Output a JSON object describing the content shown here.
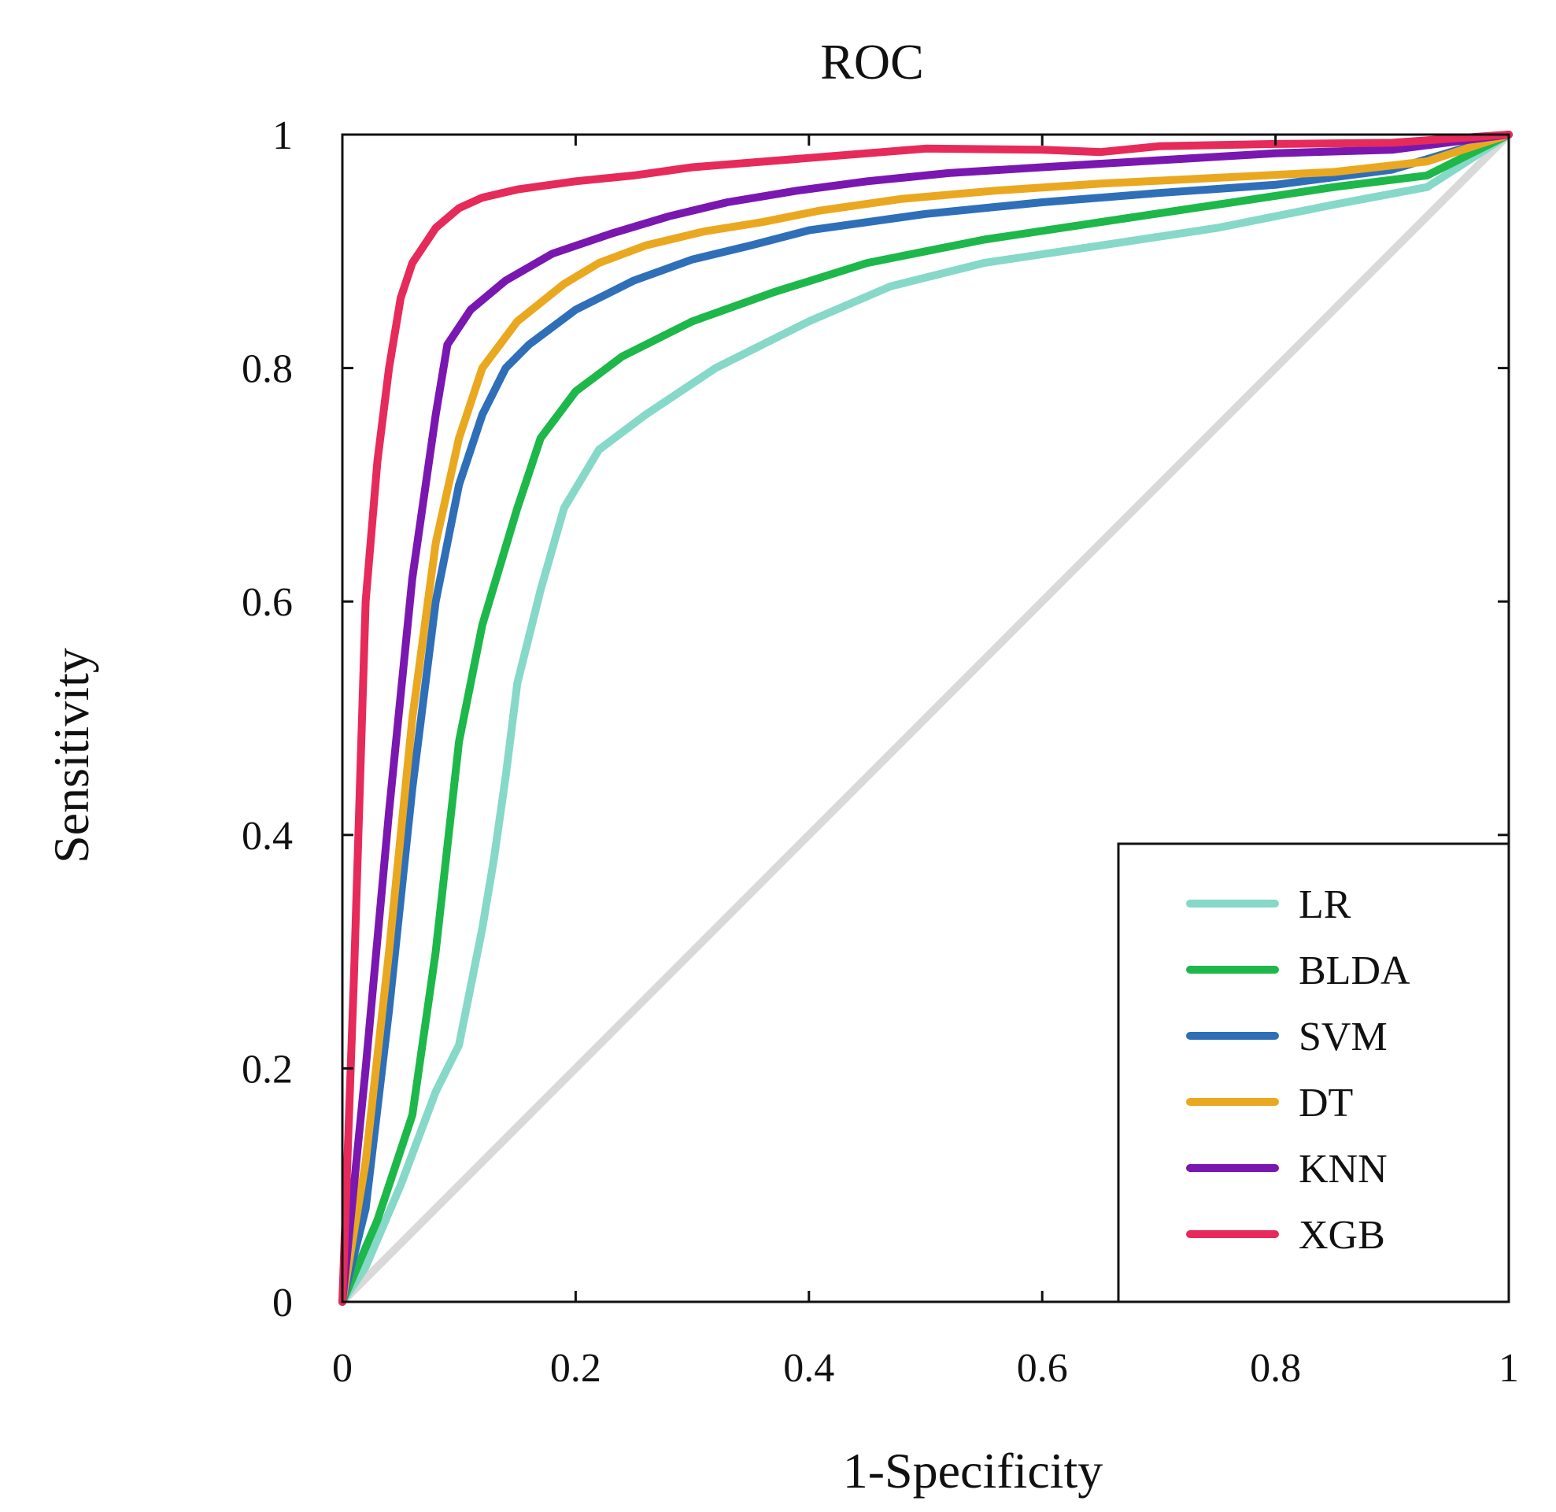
{
  "chart_data": {
    "type": "line",
    "title": "ROC",
    "xlabel": "1-Specificity",
    "ylabel": "Sensitivity",
    "xlim": [
      0,
      1
    ],
    "ylim": [
      0,
      1
    ],
    "xticks": [
      0,
      0.2,
      0.4,
      0.6,
      0.8,
      1
    ],
    "yticks": [
      0,
      0.2,
      0.4,
      0.6,
      0.8,
      1
    ],
    "xtick_labels": [
      "0",
      "0.2",
      "0.4",
      "0.6",
      "0.8",
      "1"
    ],
    "ytick_labels": [
      "0",
      "0.2",
      "0.4",
      "0.6",
      "0.8",
      "1"
    ],
    "grid": false,
    "legend_position": "bottom-right",
    "reference_line": {
      "x": [
        0,
        1
      ],
      "y": [
        0,
        1
      ],
      "color": "#d9d9d9"
    },
    "series": [
      {
        "name": "LR",
        "color": "#86d8c8",
        "x": [
          0,
          0.02,
          0.05,
          0.08,
          0.1,
          0.12,
          0.13,
          0.14,
          0.15,
          0.17,
          0.19,
          0.22,
          0.26,
          0.32,
          0.4,
          0.47,
          0.55,
          0.65,
          0.75,
          0.85,
          0.93,
          1
        ],
        "y": [
          0,
          0.03,
          0.1,
          0.18,
          0.22,
          0.32,
          0.38,
          0.45,
          0.53,
          0.61,
          0.68,
          0.73,
          0.76,
          0.8,
          0.84,
          0.87,
          0.89,
          0.905,
          0.92,
          0.94,
          0.955,
          1
        ]
      },
      {
        "name": "BLDA",
        "color": "#1eb74a",
        "x": [
          0,
          0.03,
          0.06,
          0.08,
          0.1,
          0.12,
          0.15,
          0.17,
          0.2,
          0.24,
          0.3,
          0.37,
          0.45,
          0.55,
          0.65,
          0.75,
          0.85,
          0.93,
          1
        ],
        "y": [
          0,
          0.07,
          0.16,
          0.3,
          0.48,
          0.58,
          0.68,
          0.74,
          0.78,
          0.81,
          0.84,
          0.865,
          0.89,
          0.91,
          0.925,
          0.94,
          0.955,
          0.965,
          1
        ]
      },
      {
        "name": "SVM",
        "color": "#2e6fb8",
        "x": [
          0,
          0.02,
          0.04,
          0.06,
          0.08,
          0.1,
          0.12,
          0.14,
          0.16,
          0.2,
          0.25,
          0.3,
          0.35,
          0.4,
          0.5,
          0.6,
          0.7,
          0.8,
          0.9,
          1
        ],
        "y": [
          0,
          0.08,
          0.25,
          0.44,
          0.6,
          0.7,
          0.76,
          0.8,
          0.82,
          0.85,
          0.875,
          0.893,
          0.905,
          0.918,
          0.932,
          0.942,
          0.95,
          0.957,
          0.97,
          1
        ]
      },
      {
        "name": "DT",
        "color": "#eaa820",
        "x": [
          0,
          0.02,
          0.04,
          0.06,
          0.08,
          0.1,
          0.12,
          0.15,
          0.19,
          0.22,
          0.26,
          0.31,
          0.36,
          0.41,
          0.48,
          0.56,
          0.65,
          0.75,
          0.85,
          0.93,
          1
        ],
        "y": [
          0,
          0.12,
          0.3,
          0.5,
          0.65,
          0.74,
          0.8,
          0.84,
          0.872,
          0.89,
          0.905,
          0.917,
          0.925,
          0.935,
          0.945,
          0.952,
          0.958,
          0.963,
          0.968,
          0.977,
          1
        ]
      },
      {
        "name": "KNN",
        "color": "#7a17b0",
        "x": [
          0,
          0.02,
          0.04,
          0.06,
          0.08,
          0.09,
          0.11,
          0.14,
          0.18,
          0.23,
          0.28,
          0.33,
          0.39,
          0.45,
          0.52,
          0.6,
          0.7,
          0.8,
          0.9,
          1
        ],
        "y": [
          0,
          0.2,
          0.42,
          0.62,
          0.76,
          0.82,
          0.85,
          0.875,
          0.898,
          0.915,
          0.93,
          0.942,
          0.952,
          0.96,
          0.967,
          0.972,
          0.978,
          0.984,
          0.987,
          1
        ]
      },
      {
        "name": "XGB",
        "color": "#e62a5a",
        "x": [
          0,
          0.01,
          0.02,
          0.03,
          0.04,
          0.05,
          0.06,
          0.08,
          0.1,
          0.12,
          0.15,
          0.2,
          0.25,
          0.3,
          0.4,
          0.5,
          0.6,
          0.65,
          0.7,
          0.8,
          0.9,
          1
        ],
        "y": [
          0,
          0.28,
          0.6,
          0.72,
          0.8,
          0.86,
          0.89,
          0.92,
          0.937,
          0.946,
          0.953,
          0.96,
          0.965,
          0.972,
          0.98,
          0.988,
          0.987,
          0.985,
          0.99,
          0.992,
          0.993,
          1
        ]
      }
    ]
  }
}
